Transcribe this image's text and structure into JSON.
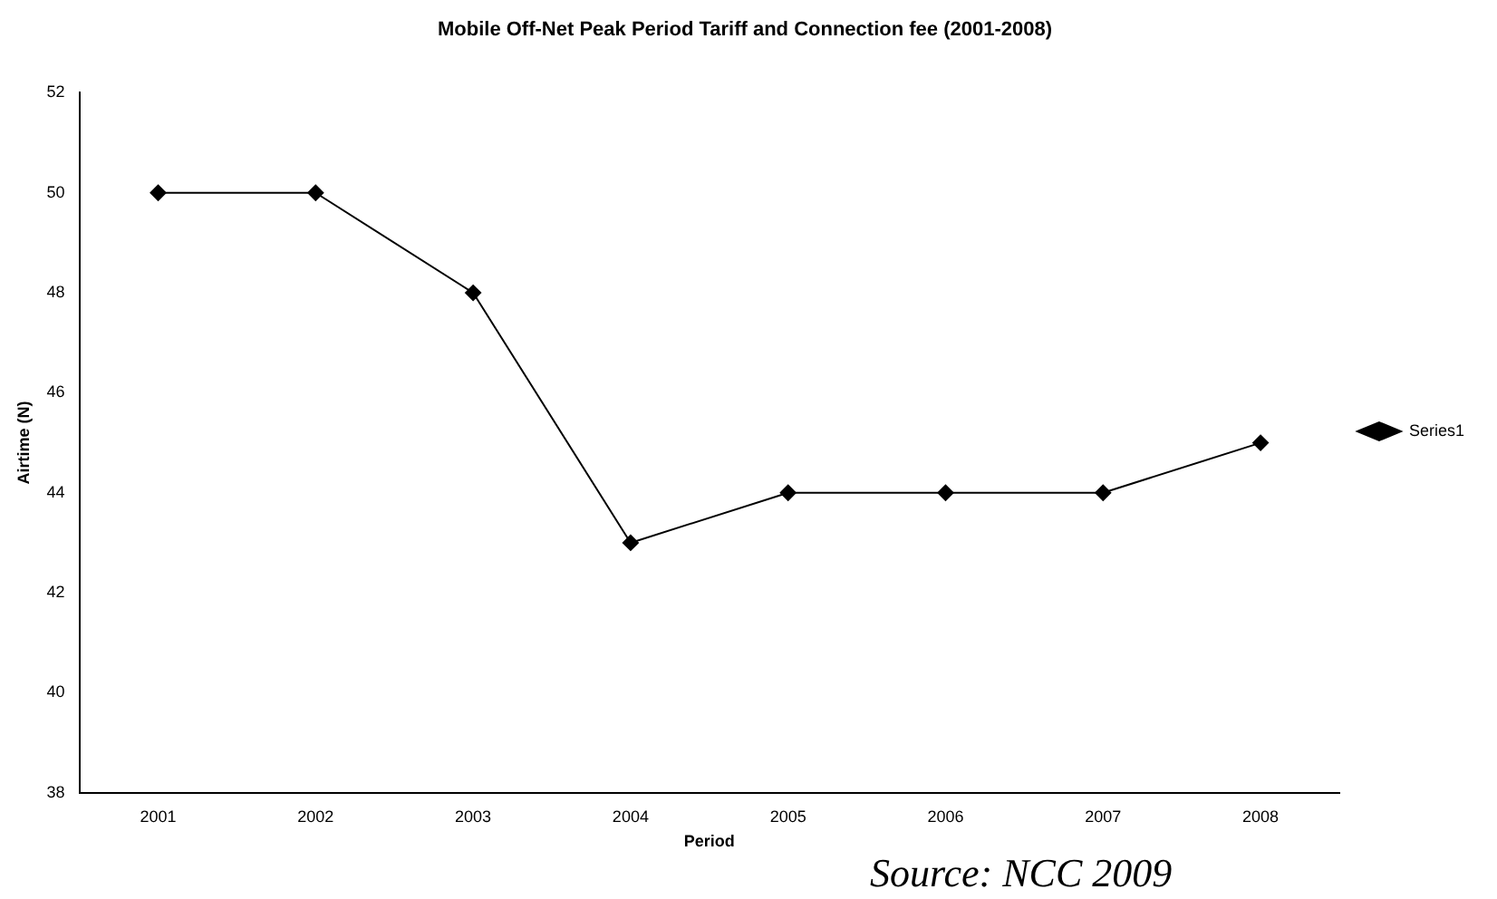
{
  "chart_data": {
    "type": "line",
    "title": "Mobile Off-Net Peak Period Tariff and Connection fee (2001-2008)",
    "xlabel": "Period",
    "ylabel": "Airtime (N)",
    "categories": [
      "2001",
      "2002",
      "2003",
      "2004",
      "2005",
      "2006",
      "2007",
      "2008"
    ],
    "series": [
      {
        "name": "Series1",
        "color": "#000000",
        "values": [
          50,
          50,
          48,
          43,
          44,
          44,
          44,
          45
        ]
      }
    ],
    "ylim": [
      38,
      52
    ],
    "yticks": [
      38,
      40,
      42,
      44,
      46,
      48,
      50,
      52
    ],
    "grid": false,
    "legend": "right",
    "marker": "diamond",
    "line_style": "solid",
    "annotations": [
      "Source: NCC 2009"
    ]
  }
}
